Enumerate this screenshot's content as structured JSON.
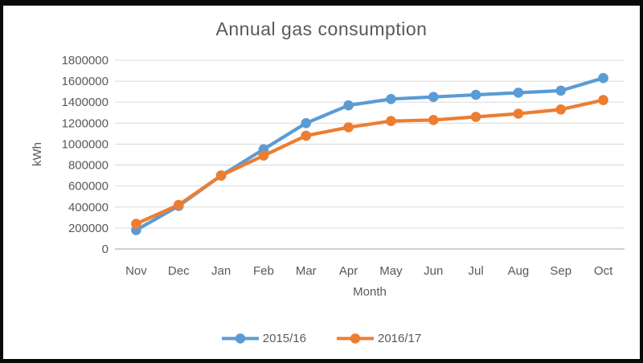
{
  "chart_data": {
    "type": "line",
    "title": "Annual gas consumption",
    "xlabel": "Month",
    "ylabel": "kWh",
    "categories": [
      "Nov",
      "Dec",
      "Jan",
      "Feb",
      "Mar",
      "Apr",
      "May",
      "Jun",
      "Jul",
      "Aug",
      "Sep",
      "Oct"
    ],
    "series": [
      {
        "name": "2015/16",
        "color": "#5B9BD5",
        "values": [
          180000,
          410000,
          700000,
          950000,
          1200000,
          1370000,
          1430000,
          1450000,
          1470000,
          1490000,
          1510000,
          1630000
        ]
      },
      {
        "name": "2016/17",
        "color": "#ED7D31",
        "values": [
          240000,
          420000,
          700000,
          890000,
          1080000,
          1160000,
          1220000,
          1230000,
          1260000,
          1290000,
          1330000,
          1420000
        ]
      }
    ],
    "ylim": [
      0,
      1800000
    ],
    "yticks": [
      0,
      200000,
      400000,
      600000,
      800000,
      1000000,
      1200000,
      1400000,
      1600000,
      1800000
    ],
    "grid": true,
    "legend_position": "bottom",
    "colors": {
      "gridline": "#D9D9D9",
      "axis_line": "#BFBFBF",
      "text": "#595959",
      "frame_border": "#0A0A0A",
      "background": "#FFFFFF"
    }
  }
}
